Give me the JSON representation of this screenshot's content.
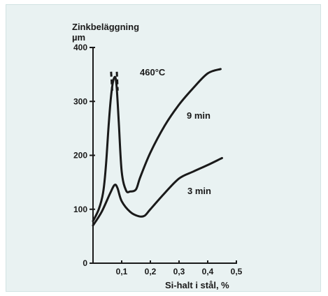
{
  "chart_data": {
    "type": "line",
    "title": "",
    "ylabel": "Zinkbeläggning",
    "yunit": "µm",
    "xlabel": "Si-halt i stål, %",
    "annotation": "460°C",
    "xlim": [
      0,
      0.5
    ],
    "ylim": [
      0,
      400
    ],
    "x_ticks": [
      0.1,
      0.2,
      0.3,
      0.4,
      0.5
    ],
    "x_tick_labels": [
      "0,1",
      "0,2",
      "0,3",
      "0,4",
      "0,5"
    ],
    "y_ticks": [
      0,
      100,
      200,
      300,
      400
    ],
    "y_tick_labels": [
      "0",
      "100",
      "200",
      "300",
      "400"
    ],
    "grid": false,
    "series": [
      {
        "name": "9 min",
        "x": [
          0.0,
          0.02,
          0.035,
          0.045,
          0.055,
          0.065,
          0.075,
          0.082,
          0.09,
          0.1,
          0.115,
          0.13,
          0.15,
          0.165,
          0.2,
          0.25,
          0.3,
          0.35,
          0.4,
          0.445
        ],
        "y": [
          78,
          100,
          130,
          180,
          260,
          320,
          345,
          330,
          260,
          170,
          135,
          133,
          137,
          160,
          205,
          255,
          294,
          325,
          352,
          360
        ],
        "dashed_segments": [
          {
            "x": [
              0.063,
              0.067
            ],
            "y": [
              355,
              320
            ]
          },
          {
            "x": [
              0.083,
              0.086
            ],
            "y": [
              355,
              320
            ]
          }
        ]
      },
      {
        "name": "3 min",
        "x": [
          0.0,
          0.03,
          0.06,
          0.075,
          0.085,
          0.1,
          0.13,
          0.16,
          0.18,
          0.2,
          0.25,
          0.3,
          0.35,
          0.4,
          0.45
        ],
        "y": [
          70,
          95,
          130,
          145,
          140,
          115,
          95,
          87,
          88,
          100,
          130,
          157,
          170,
          182,
          195
        ]
      }
    ]
  },
  "labels": {
    "ylabel_line1": "Zinkbeläggning",
    "ylabel_line2": "µm",
    "xlabel": "Si-halt i stål, %",
    "temp": "460°C",
    "series1": "9 min",
    "series2": "3 min"
  },
  "colors": {
    "background": "#e9f2f2",
    "ink": "#1a1a1a"
  }
}
